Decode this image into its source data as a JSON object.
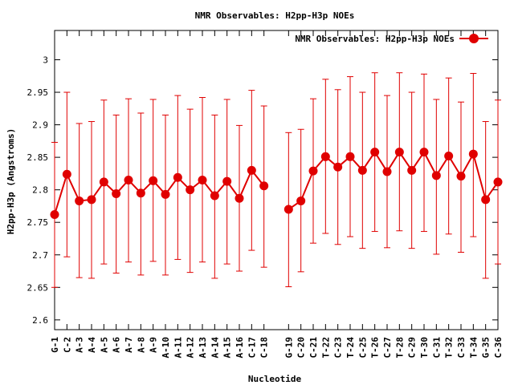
{
  "chart_data": {
    "type": "line",
    "title": "NMR Observables: H2pp-H3p NOEs",
    "xlabel": "Nucleotide",
    "ylabel": "H2pp-H3p (Angstroms)",
    "ylim": [
      2.585,
      3.045
    ],
    "yticks": [
      "2.6",
      "2.65",
      "2.7",
      "2.75",
      "2.8",
      "2.85",
      "2.9",
      "2.95",
      "3"
    ],
    "grid": false,
    "legend_position": "top-right",
    "series": [
      {
        "name": "NMR Observables: H2pp-H3p NOEs",
        "color": "#e00000",
        "segments": [
          {
            "categories": [
              "G-1",
              "C-2",
              "A-3",
              "A-4",
              "A-5",
              "A-6",
              "A-7",
              "A-8",
              "A-9",
              "A-10",
              "A-11",
              "A-12",
              "A-13",
              "A-14",
              "A-15",
              "A-16",
              "C-17",
              "C-18"
            ],
            "values": [
              2.762,
              2.824,
              2.783,
              2.785,
              2.812,
              2.794,
              2.815,
              2.795,
              2.814,
              2.793,
              2.819,
              2.8,
              2.815,
              2.791,
              2.813,
              2.787,
              2.83,
              2.806
            ],
            "err_low": [
              2.65,
              2.697,
              2.665,
              2.664,
              2.686,
              2.672,
              2.689,
              2.669,
              2.69,
              2.669,
              2.693,
              2.673,
              2.689,
              2.664,
              2.686,
              2.675,
              2.707,
              2.681
            ],
            "err_high": [
              2.873,
              2.95,
              2.902,
              2.905,
              2.938,
              2.915,
              2.94,
              2.918,
              2.939,
              2.915,
              2.945,
              2.924,
              2.942,
              2.915,
              2.939,
              2.899,
              2.953,
              2.929
            ]
          },
          {
            "categories": [
              "G-19",
              "C-20",
              "C-21",
              "T-22",
              "C-23",
              "T-24",
              "C-25",
              "T-26",
              "C-27",
              "T-28",
              "C-29",
              "T-30",
              "C-31",
              "T-32",
              "C-33",
              "T-34",
              "G-35",
              "C-36"
            ],
            "values": [
              2.77,
              2.783,
              2.829,
              2.851,
              2.835,
              2.851,
              2.83,
              2.858,
              2.828,
              2.858,
              2.83,
              2.858,
              2.822,
              2.852,
              2.821,
              2.855,
              2.785,
              2.812
            ],
            "err_low": [
              2.651,
              2.674,
              2.718,
              2.733,
              2.716,
              2.728,
              2.71,
              2.736,
              2.711,
              2.737,
              2.71,
              2.736,
              2.701,
              2.732,
              2.704,
              2.728,
              2.664,
              2.686
            ],
            "err_high": [
              2.888,
              2.893,
              2.94,
              2.97,
              2.954,
              2.974,
              2.95,
              2.98,
              2.945,
              2.98,
              2.95,
              2.978,
              2.939,
              2.972,
              2.935,
              2.979,
              2.905,
              2.938
            ]
          }
        ]
      }
    ]
  }
}
